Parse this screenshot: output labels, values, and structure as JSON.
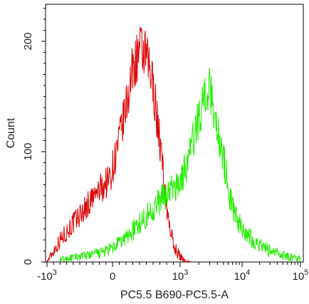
{
  "chart_data": {
    "type": "line",
    "title": "",
    "xlabel": "PC5.5 B690-PC5.5-A",
    "ylabel": "Count",
    "x_scale": "biexponential",
    "xlim": [
      -1000,
      100000
    ],
    "ylim": [
      0,
      240
    ],
    "grid": false,
    "legend": "none",
    "x_ticks": [
      {
        "value": -1000,
        "base": "-10",
        "exp": "3"
      },
      {
        "value": 0,
        "base": "0",
        "exp": ""
      },
      {
        "value": 1000,
        "base": "10",
        "exp": "3"
      },
      {
        "value": 10000,
        "base": "10",
        "exp": "4"
      },
      {
        "value": 100000,
        "base": "10",
        "exp": "5"
      }
    ],
    "y_ticks": [
      {
        "value": 0,
        "label": "0"
      },
      {
        "value": 100,
        "label": "100"
      },
      {
        "value": 200,
        "label": "200"
      }
    ],
    "series": [
      {
        "color": "#dd0000",
        "x": [
          -1000,
          -800,
          -600,
          -400,
          -200,
          -50,
          0,
          100,
          200,
          300,
          400,
          500,
          600,
          700,
          800,
          900,
          1000,
          1150,
          1300,
          1500
        ],
        "y": [
          0,
          20,
          35,
          50,
          65,
          75,
          85,
          110,
          140,
          175,
          192,
          185,
          160,
          110,
          50,
          15,
          5,
          2,
          0,
          0
        ]
      },
      {
        "color": "#22ee00",
        "x": [
          -800,
          -500,
          -200,
          0,
          200,
          400,
          600,
          800,
          1000,
          1300,
          1700,
          2200,
          2800,
          3300,
          4000,
          5000,
          6500,
          9000,
          15000,
          30000,
          60000,
          100000
        ],
        "y": [
          2,
          5,
          8,
          12,
          22,
          35,
          48,
          62,
          72,
          90,
          115,
          140,
          158,
          148,
          120,
          95,
          55,
          35,
          20,
          10,
          5,
          3
        ]
      }
    ]
  }
}
